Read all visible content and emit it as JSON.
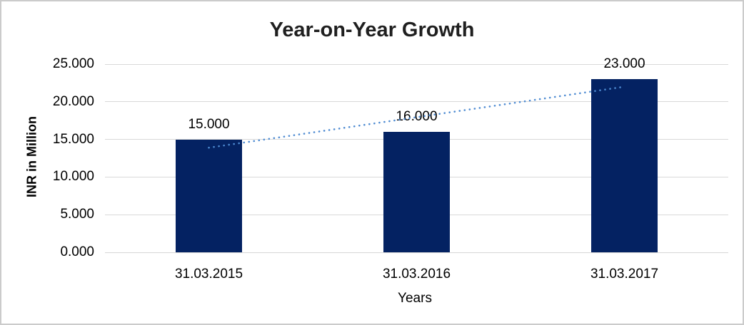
{
  "window": {
    "background_color": "#FFFFFF",
    "border_color": "#CBCBCB"
  },
  "chart_data": {
    "type": "bar",
    "title": "Year-on-Year Growth",
    "categories": [
      "31.03.2015",
      "31.03.2016",
      "31.03.2017"
    ],
    "values": [
      15.0,
      16.0,
      23.0
    ],
    "data_labels": [
      "15.000",
      "16.000",
      "23.000"
    ],
    "xlabel": "Years",
    "ylabel": "INR in Million",
    "ylim": [
      0,
      25
    ],
    "yticks": [
      0,
      5,
      10,
      15,
      20,
      25
    ],
    "ytick_labels": [
      "0.000",
      "5.000",
      "10.000",
      "15.000",
      "20.000",
      "25.000"
    ],
    "grid": true,
    "legend_position": "none",
    "bar_color": "#042262",
    "gridline_color": "#D9D9D9",
    "zero_line_color": "#D6D6D6",
    "title_color": "#1F1F1F",
    "text_color": "#000000",
    "trendline": {
      "type": "linear",
      "style": "dotted",
      "color": "#4E8BD2",
      "start_value": 13.9,
      "end_value": 22.0
    }
  }
}
